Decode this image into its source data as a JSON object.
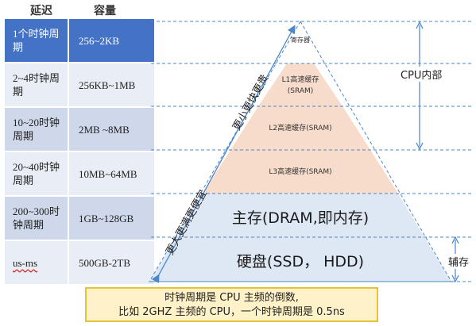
{
  "table": {
    "headers": {
      "latency": "延迟",
      "capacity": "容量"
    },
    "rows": [
      {
        "latency": "1个时钟周期",
        "capacity": "256~2KB"
      },
      {
        "latency": "2~4时钟周期",
        "capacity": "256KB~1MB"
      },
      {
        "latency": "10~20时钟周期",
        "capacity": "2MB ~8MB"
      },
      {
        "latency": "20~40时钟周期",
        "capacity": "10MB~64MB"
      },
      {
        "latency": "200~300时钟周期",
        "capacity": "1GB~128GB"
      },
      {
        "latency": "us-ms",
        "capacity": "500GB-2TB"
      }
    ]
  },
  "pyramid": {
    "levels": [
      {
        "name": "寄存器",
        "sub": ""
      },
      {
        "name": "L1高速缓存",
        "sub": "(SRAM)"
      },
      {
        "name": "L2高速缓存(SRAM)",
        "sub": ""
      },
      {
        "name": "L3高速缓存(SRAM)",
        "sub": ""
      },
      {
        "name": "主存(DRAM,即内存)",
        "sub": ""
      },
      {
        "name": "硬盘(SSD， HDD)",
        "sub": ""
      }
    ],
    "colors": {
      "cache": "#f8dccb",
      "storage": "#dde8f4",
      "outline": "#4a86c8"
    }
  },
  "axis": {
    "up_label": "更小更快更贵",
    "down_label": "更大更满更便宜"
  },
  "braces": {
    "cpu_internal": "CPU内部",
    "auxiliary": "辅存"
  },
  "note": {
    "line1": "时钟周期是 CPU 主频的倒数,",
    "line2": "比如 2GHZ 主频的 CPU，一个时钟周期是 0.5ns"
  }
}
